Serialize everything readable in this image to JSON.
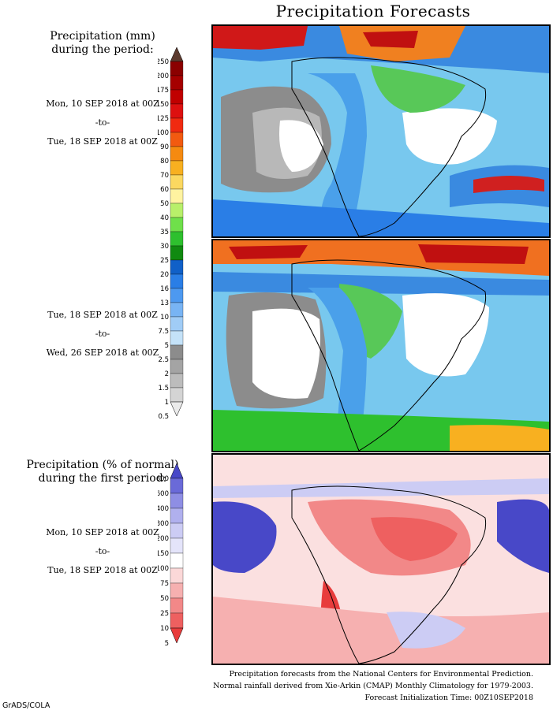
{
  "title": "Precipitation Forecasts",
  "panel1": {
    "heading_line1": "Precipitation (mm)",
    "heading_line2": "during the period:",
    "start": "Mon, 10 SEP 2018 at 00Z",
    "sep": "-to-",
    "end": "Tue, 18 SEP 2018 at 00Z"
  },
  "panel2": {
    "start": "Tue, 18 SEP 2018 at 00Z",
    "sep": "-to-",
    "end": "Wed, 26 SEP 2018 at 00Z"
  },
  "panel3": {
    "heading_line1": "Precipitation (% of normal)",
    "heading_line2": "during the first period:",
    "start": "Mon, 10 SEP 2018 at 00Z",
    "sep": "-to-",
    "end": "Tue, 18 SEP 2018 at 00Z"
  },
  "precip_scale": {
    "labels": [
      "250",
      "200",
      "175",
      "150",
      "125",
      "100",
      "90",
      "80",
      "70",
      "60",
      "50",
      "40",
      "35",
      "30",
      "25",
      "20",
      "16",
      "13",
      "10",
      "7.5",
      "5",
      "2.5",
      "2",
      "1.5",
      "1",
      "0.5"
    ],
    "colors": [
      "#5c3a2e",
      "#8b0000",
      "#a50000",
      "#c00000",
      "#dd1010",
      "#f02a10",
      "#f25a10",
      "#f58a10",
      "#f8b020",
      "#fbd860",
      "#fff3a0",
      "#b8f06a",
      "#6fe04a",
      "#2ec02e",
      "#108a10",
      "#1060c8",
      "#2a7ee6",
      "#4d99f0",
      "#78b4f4",
      "#a0ccf6",
      "#c4e2f8",
      "#8c8c8c",
      "#a4a4a4",
      "#bcbcbc",
      "#d4d4d4",
      "#ebebeb"
    ]
  },
  "percent_scale": {
    "labels": [
      "800",
      "600",
      "400",
      "300",
      "200",
      "150",
      "100",
      "75",
      "50",
      "25",
      "10",
      "5"
    ],
    "colors": [
      "#4848c8",
      "#6a6ad8",
      "#8e8ee4",
      "#b0b0ee",
      "#ccccf4",
      "#e4e4fa",
      "#ffffff",
      "#fbd8d8",
      "#f6b0b0",
      "#f28888",
      "#ee6060",
      "#e83c3c"
    ]
  },
  "footer": {
    "line1": "Precipitation forecasts from the National Centers for Environmental Prediction.",
    "line2": "Normal rainfall derived from Xie-Arkin (CMAP) Monthly Climatology for 1979-2003.",
    "line3": "Forecast Initialization Time: 00Z10SEP2018"
  },
  "credit": "GrADS/COLA"
}
